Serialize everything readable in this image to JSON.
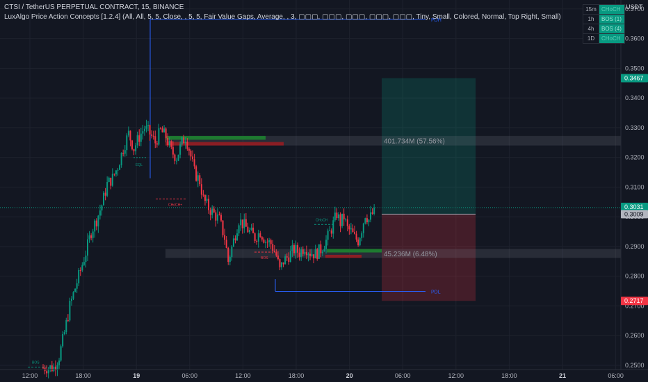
{
  "header": {
    "symbol_line": "CTSI / TetherUS PERPETUAL CONTRACT, 15, BINANCE",
    "indicator_line": "LuxAlgo Price Action Concepts [1.2.4] (All, All, 5, 5, Close, , 5, 5, Fair Value Gaps, Average, , 3, ▢▢▢, ▢▢▢, ▢▢▢, ▢▢▢, ▢▢▢, Tiny, Small, Colored, Normal, Top Right, Small)"
  },
  "currency": "USDT",
  "timeframe_table": [
    {
      "tf": "15m",
      "status": "CHoCH"
    },
    {
      "tf": "1h",
      "status": "BOS (1)"
    },
    {
      "tf": "4h",
      "status": "BOS (4)"
    },
    {
      "tf": "1D",
      "status": "CHoCH"
    }
  ],
  "chart_data": {
    "type": "candlestick",
    "y_ticks": [
      "0.3700",
      "0.3600",
      "0.3500",
      "0.3400",
      "0.3300",
      "0.3200",
      "0.3100",
      "0.3000",
      "0.2900",
      "0.2800",
      "0.2700",
      "0.2600",
      "0.2500"
    ],
    "x_ticks": [
      {
        "label": "12:00",
        "bold": false
      },
      {
        "label": "18:00",
        "bold": false
      },
      {
        "label": "19",
        "bold": true
      },
      {
        "label": "06:00",
        "bold": false
      },
      {
        "label": "12:00",
        "bold": false
      },
      {
        "label": "18:00",
        "bold": false
      },
      {
        "label": "20",
        "bold": true
      },
      {
        "label": "06:00",
        "bold": false
      },
      {
        "label": "12:00",
        "bold": false
      },
      {
        "label": "18:00",
        "bold": false
      },
      {
        "label": "21",
        "bold": true
      },
      {
        "label": "06:00",
        "bold": false
      }
    ],
    "ylim": [
      0.2486,
      0.373
    ],
    "price_path": [
      [
        0,
        0.2492
      ],
      [
        6,
        0.2493
      ],
      [
        9,
        0.253
      ],
      [
        12,
        0.261
      ],
      [
        15,
        0.27
      ],
      [
        18,
        0.276
      ],
      [
        21,
        0.282
      ],
      [
        24,
        0.288
      ],
      [
        27,
        0.295
      ],
      [
        30,
        0.299
      ],
      [
        33,
        0.304
      ],
      [
        36,
        0.311
      ],
      [
        39,
        0.313
      ],
      [
        42,
        0.317
      ],
      [
        45,
        0.323
      ],
      [
        48,
        0.328
      ],
      [
        51,
        0.323
      ],
      [
        54,
        0.327
      ],
      [
        57,
        0.33
      ],
      [
        60,
        0.328
      ],
      [
        63,
        0.325
      ],
      [
        66,
        0.329
      ],
      [
        69,
        0.327
      ],
      [
        72,
        0.322
      ],
      [
        75,
        0.32
      ],
      [
        78,
        0.325
      ],
      [
        80,
        0.327
      ],
      [
        82,
        0.323
      ],
      [
        85,
        0.315
      ],
      [
        88,
        0.312
      ],
      [
        90,
        0.306
      ],
      [
        93,
        0.303
      ],
      [
        96,
        0.301
      ],
      [
        99,
        0.299
      ],
      [
        102,
        0.293
      ],
      [
        104,
        0.285
      ],
      [
        107,
        0.292
      ],
      [
        110,
        0.299
      ],
      [
        113,
        0.297
      ],
      [
        116,
        0.295
      ],
      [
        119,
        0.293
      ],
      [
        122,
        0.295
      ],
      [
        125,
        0.292
      ],
      [
        128,
        0.291
      ],
      [
        131,
        0.287
      ],
      [
        133,
        0.282
      ],
      [
        135,
        0.285
      ],
      [
        138,
        0.287
      ],
      [
        141,
        0.289
      ],
      [
        144,
        0.288
      ],
      [
        147,
        0.29
      ],
      [
        150,
        0.288
      ],
      [
        153,
        0.2875
      ],
      [
        156,
        0.289
      ],
      [
        159,
        0.292
      ],
      [
        162,
        0.296
      ],
      [
        165,
        0.301
      ],
      [
        167,
        0.298
      ],
      [
        169,
        0.3
      ],
      [
        171,
        0.296
      ],
      [
        173,
        0.295
      ],
      [
        175,
        0.293
      ],
      [
        177,
        0.292
      ],
      [
        179,
        0.296
      ],
      [
        181,
        0.301
      ],
      [
        183,
        0.299
      ],
      [
        185,
        0.301
      ],
      [
        186,
        0.3031
      ]
    ],
    "current_price": 0.3031,
    "annotations": [
      {
        "label": "PDH",
        "price": 0.3665
      },
      {
        "label": "PDL",
        "price": 0.2749
      },
      {
        "label": "EQL",
        "price": 0.3176
      },
      {
        "label": "CHoCH+",
        "price": 0.306
      },
      {
        "label": "BOS",
        "price": 0.2846
      },
      {
        "label": "CHoCH",
        "price": 0.296
      },
      {
        "label": "BOS",
        "price": 0.2494
      }
    ],
    "order_blocks": [
      {
        "top": 0.3272,
        "bottom": 0.326,
        "color": "#1e7a30"
      },
      {
        "top": 0.3252,
        "bottom": 0.324,
        "color": "#8b1e24"
      },
      {
        "top": 0.2892,
        "bottom": 0.288,
        "color": "#1e7a30"
      },
      {
        "top": 0.2872,
        "bottom": 0.2862,
        "color": "#8b1e24"
      }
    ],
    "volume_zones": [
      {
        "label": "401.734M (57.56%)",
        "top": 0.3272,
        "bottom": 0.324
      },
      {
        "label": "45.236M (6.48%)",
        "top": 0.2892,
        "bottom": 0.2862
      }
    ],
    "position": {
      "target": 0.3467,
      "entry": 0.3009,
      "stop": 0.2717
    },
    "price_labels": [
      {
        "text": "0.3467",
        "price": 0.3467,
        "color": "#089981"
      },
      {
        "text": "0.3031",
        "sub": "08:26",
        "price": 0.3031,
        "color": "#089981"
      },
      {
        "text": "0.3009",
        "price": 0.3009,
        "color": "#b2b5be"
      },
      {
        "text": "0.2717",
        "price": 0.2717,
        "color": "#f23645"
      }
    ]
  }
}
